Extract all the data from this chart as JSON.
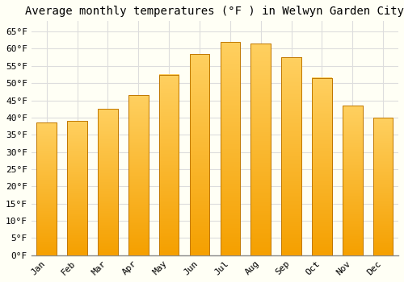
{
  "title": "Average monthly temperatures (°F ) in Welwyn Garden City",
  "months": [
    "Jan",
    "Feb",
    "Mar",
    "Apr",
    "May",
    "Jun",
    "Jul",
    "Aug",
    "Sep",
    "Oct",
    "Nov",
    "Dec"
  ],
  "values": [
    38.5,
    39.0,
    42.5,
    46.5,
    52.5,
    58.5,
    62.0,
    61.5,
    57.5,
    51.5,
    43.5,
    40.0
  ],
  "bar_color_top": "#FFD060",
  "bar_color_bottom": "#F5A000",
  "bar_edge_color": "#C07800",
  "background_color": "#FFFFF5",
  "grid_color": "#DDDDDD",
  "ylim": [
    0,
    68
  ],
  "yticks": [
    0,
    5,
    10,
    15,
    20,
    25,
    30,
    35,
    40,
    45,
    50,
    55,
    60,
    65
  ],
  "ytick_labels": [
    "0°F",
    "5°F",
    "10°F",
    "15°F",
    "20°F",
    "25°F",
    "30°F",
    "35°F",
    "40°F",
    "45°F",
    "50°F",
    "55°F",
    "60°F",
    "65°F"
  ],
  "title_fontsize": 10,
  "tick_fontsize": 8,
  "font_family": "monospace"
}
